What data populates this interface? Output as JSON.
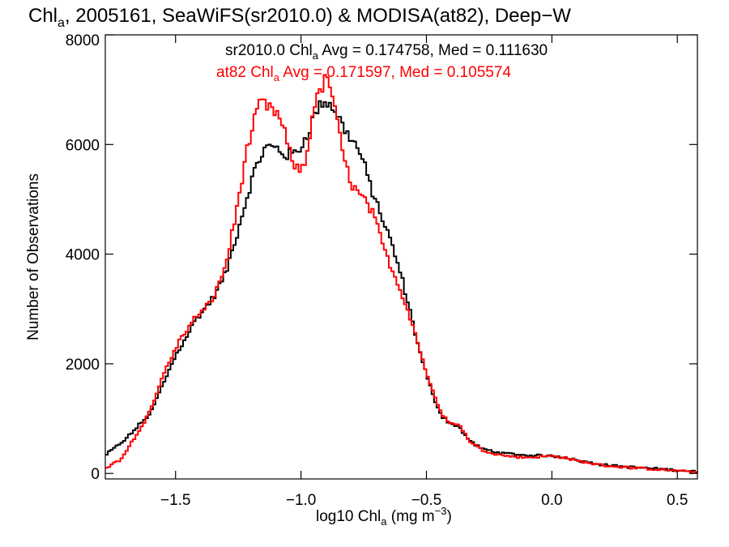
{
  "chart_data": {
    "type": "line",
    "title": {
      "prefix": "Chl",
      "sub": "a",
      "rest": ", 2005161, SeaWiFS(sr2010.0) & MODISA(at82), Deep−W"
    },
    "xlabel": {
      "prefix": "log10 Chl",
      "sub": "a",
      "unit": " (mg m",
      "sup": "−3",
      "close": ")"
    },
    "ylabel": "Number of Observations",
    "xlim": [
      -1.78,
      0.58
    ],
    "ylim": [
      -100,
      8000
    ],
    "x_ticks": [
      {
        "value": -1.5,
        "label": "−1.5"
      },
      {
        "value": -1.0,
        "label": "−1.0"
      },
      {
        "value": -0.5,
        "label": "−0.5"
      },
      {
        "value": 0.0,
        "label": "0.0"
      },
      {
        "value": 0.5,
        "label": "0.5"
      }
    ],
    "y_ticks": [
      {
        "value": 0,
        "label": "0"
      },
      {
        "value": 2000,
        "label": "2000"
      },
      {
        "value": 4000,
        "label": "4000"
      },
      {
        "value": 6000,
        "label": "6000"
      },
      {
        "value": 8000,
        "label": "8000"
      }
    ],
    "annotations": [
      {
        "color": "#000000",
        "pre": "sr2010.0 Chl",
        "sub": "a",
        "post": " Avg = 0.174758, Med = 0.111630"
      },
      {
        "color": "#ff0000",
        "pre": "at82 Chl",
        "sub": "a",
        "post": " Avg = 0.171597, Med = 0.105574"
      }
    ],
    "series": [
      {
        "color": "#000000",
        "points": [
          [
            -1.78,
            330
          ],
          [
            -1.7,
            620
          ],
          [
            -1.6,
            1100
          ],
          [
            -1.5,
            2150
          ],
          [
            -1.42,
            2800
          ],
          [
            -1.35,
            3200
          ],
          [
            -1.3,
            3650
          ],
          [
            -1.25,
            4450
          ],
          [
            -1.2,
            5300
          ],
          [
            -1.17,
            5700
          ],
          [
            -1.14,
            5950
          ],
          [
            -1.1,
            5950
          ],
          [
            -1.06,
            5800
          ],
          [
            -1.02,
            5850
          ],
          [
            -1.0,
            5950
          ],
          [
            -0.97,
            6250
          ],
          [
            -0.94,
            6600
          ],
          [
            -0.91,
            6800
          ],
          [
            -0.89,
            6750
          ],
          [
            -0.86,
            6600
          ],
          [
            -0.83,
            6300
          ],
          [
            -0.79,
            6050
          ],
          [
            -0.76,
            5800
          ],
          [
            -0.72,
            5200
          ],
          [
            -0.68,
            4700
          ],
          [
            -0.64,
            4200
          ],
          [
            -0.6,
            3600
          ],
          [
            -0.56,
            2850
          ],
          [
            -0.52,
            2100
          ],
          [
            -0.48,
            1500
          ],
          [
            -0.44,
            1050
          ],
          [
            -0.4,
            900
          ],
          [
            -0.37,
            850
          ],
          [
            -0.33,
            600
          ],
          [
            -0.28,
            450
          ],
          [
            -0.2,
            370
          ],
          [
            -0.1,
            330
          ],
          [
            0.0,
            320
          ],
          [
            0.05,
            300
          ],
          [
            0.1,
            240
          ],
          [
            0.2,
            160
          ],
          [
            0.3,
            120
          ],
          [
            0.4,
            90
          ],
          [
            0.5,
            60
          ],
          [
            0.58,
            30
          ]
        ]
      },
      {
        "color": "#ff0000",
        "points": [
          [
            -1.78,
            100
          ],
          [
            -1.72,
            250
          ],
          [
            -1.65,
            750
          ],
          [
            -1.6,
            1150
          ],
          [
            -1.54,
            1900
          ],
          [
            -1.48,
            2450
          ],
          [
            -1.42,
            2850
          ],
          [
            -1.38,
            3000
          ],
          [
            -1.34,
            3300
          ],
          [
            -1.3,
            3800
          ],
          [
            -1.26,
            4700
          ],
          [
            -1.22,
            5800
          ],
          [
            -1.19,
            6350
          ],
          [
            -1.16,
            6800
          ],
          [
            -1.13,
            6650
          ],
          [
            -1.1,
            6600
          ],
          [
            -1.07,
            6300
          ],
          [
            -1.04,
            5750
          ],
          [
            -1.01,
            5500
          ],
          [
            -0.98,
            5700
          ],
          [
            -0.95,
            6700
          ],
          [
            -0.92,
            7000
          ],
          [
            -0.9,
            7200
          ],
          [
            -0.88,
            7050
          ],
          [
            -0.86,
            6500
          ],
          [
            -0.83,
            5750
          ],
          [
            -0.8,
            5300
          ],
          [
            -0.77,
            5100
          ],
          [
            -0.74,
            4950
          ],
          [
            -0.71,
            4700
          ],
          [
            -0.67,
            4100
          ],
          [
            -0.63,
            3650
          ],
          [
            -0.6,
            3300
          ],
          [
            -0.56,
            2800
          ],
          [
            -0.52,
            2150
          ],
          [
            -0.48,
            1550
          ],
          [
            -0.44,
            1100
          ],
          [
            -0.4,
            900
          ],
          [
            -0.37,
            900
          ],
          [
            -0.33,
            600
          ],
          [
            -0.28,
            430
          ],
          [
            -0.2,
            330
          ],
          [
            -0.1,
            290
          ],
          [
            0.0,
            320
          ],
          [
            0.05,
            290
          ],
          [
            0.1,
            230
          ],
          [
            0.2,
            150
          ],
          [
            0.3,
            110
          ],
          [
            0.4,
            80
          ],
          [
            0.5,
            50
          ],
          [
            0.58,
            20
          ]
        ]
      }
    ]
  }
}
